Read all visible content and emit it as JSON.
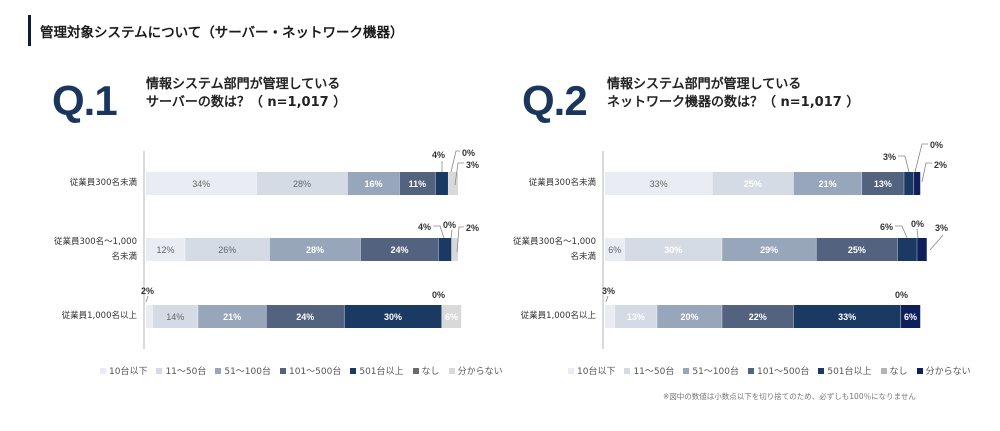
{
  "header": {
    "title": "管理対象システムについて（サーバー・ネットワーク機器）"
  },
  "questions": [
    {
      "id": "Q.1",
      "line1": "情報システム部門が管理している",
      "line2": "サーバーの数は？（ n=1,017 ）"
    },
    {
      "id": "Q.2",
      "line1": "情報システム部門が管理している",
      "line2": "ネットワーク機器の数は？（ n=1,017 ）"
    }
  ],
  "chart_data": [
    {
      "type": "bar",
      "orientation": "horizontal",
      "stacked": true,
      "percent": true,
      "title": "情報システム部門が管理しているサーバーの数は？（ n=1,017 ）",
      "xlabel": "",
      "ylabel": "",
      "xlim": [
        0,
        100
      ],
      "legend_position": "bottom",
      "categories": [
        "従業員300名未満",
        "従業員300名～1,000\n名未満",
        "従業員1,000名以上"
      ],
      "series": [
        {
          "name": "10台以下",
          "color": "#e9ecf2",
          "label_color": "#666666",
          "values": [
            34,
            12,
            2
          ]
        },
        {
          "name": "11～50台",
          "color": "#d5dbe5",
          "label_color": "#666666",
          "values": [
            28,
            26,
            14
          ]
        },
        {
          "name": "51～100台",
          "color": "#98a6bc",
          "label_color": "#ffffff",
          "values": [
            16,
            28,
            21
          ]
        },
        {
          "name": "101～500台",
          "color": "#52627f",
          "label_color": "#ffffff",
          "values": [
            11,
            24,
            24
          ]
        },
        {
          "name": "501台以上",
          "color": "#1b3a63",
          "label_color": "#ffffff",
          "values": [
            4,
            4,
            30
          ]
        },
        {
          "name": "なし",
          "color": "#6b6b6b",
          "label_color": "#ffffff",
          "values": [
            0,
            0,
            0
          ]
        },
        {
          "name": "分からない",
          "color": "#d9d9d9",
          "label_color": "#ffffff",
          "values": [
            3,
            2,
            6
          ]
        }
      ],
      "outside_labels": [
        [
          4,
          5,
          6
        ],
        [
          4,
          5,
          6
        ],
        [
          0,
          5
        ]
      ]
    },
    {
      "type": "bar",
      "orientation": "horizontal",
      "stacked": true,
      "percent": true,
      "title": "情報システム部門が管理しているネットワーク機器の数は？（ n=1,017 ）",
      "xlabel": "",
      "ylabel": "",
      "xlim": [
        0,
        100
      ],
      "legend_position": "bottom",
      "categories": [
        "従業員300名未満",
        "従業員300名～1,000\n名未満",
        "従業員1,000名以上"
      ],
      "series": [
        {
          "name": "10台以下",
          "color": "#e9ecf2",
          "label_color": "#666666",
          "values": [
            33,
            6,
            3
          ]
        },
        {
          "name": "11～50台",
          "color": "#d5dbe5",
          "label_color": "#ffffff",
          "values": [
            25,
            30,
            13
          ]
        },
        {
          "name": "51～100台",
          "color": "#98a6bc",
          "label_color": "#ffffff",
          "values": [
            21,
            29,
            20
          ]
        },
        {
          "name": "101～500台",
          "color": "#52627f",
          "label_color": "#ffffff",
          "values": [
            13,
            25,
            22
          ]
        },
        {
          "name": "501台以上",
          "color": "#1b3a63",
          "label_color": "#ffffff",
          "values": [
            3,
            6,
            33
          ]
        },
        {
          "name": "なし",
          "color": "#b3b3b3",
          "label_color": "#ffffff",
          "values": [
            0,
            0,
            0
          ]
        },
        {
          "name": "分からない",
          "color": "#0f1f5c",
          "label_color": "#ffffff",
          "values": [
            2,
            3,
            6
          ]
        }
      ],
      "outside_labels": [
        [
          4,
          5,
          6
        ],
        [
          4,
          5,
          6
        ],
        [
          0,
          5
        ]
      ]
    }
  ],
  "footnote": "※図中の数値は小数点以下を切り捨てのため、必ずしも100％になりません"
}
